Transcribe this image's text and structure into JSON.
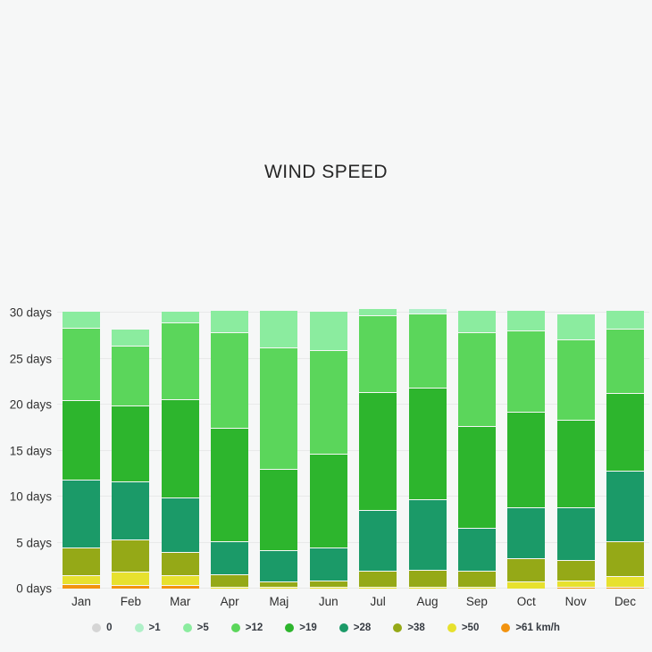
{
  "chart": {
    "title": "WIND SPEED"
  },
  "chart_data": {
    "type": "bar",
    "stacked": true,
    "title": "WIND SPEED",
    "xlabel": "",
    "ylabel": "days",
    "ylim": [
      0,
      30
    ],
    "yticks": [
      0,
      5,
      10,
      15,
      20,
      25,
      30
    ],
    "ytick_suffix": " days",
    "grid": true,
    "legend_position": "bottom",
    "categories": [
      "Jan",
      "Feb",
      "Mar",
      "Apr",
      "Maj",
      "Jun",
      "Jul",
      "Aug",
      "Sep",
      "Oct",
      "Nov",
      "Dec"
    ],
    "series": [
      {
        "name": "0",
        "legend_label": "0",
        "color": "#d5d5d5",
        "values": [
          0,
          0,
          0,
          0,
          0,
          0,
          0,
          0,
          0,
          0,
          0,
          0
        ]
      },
      {
        "name": ">1",
        "legend_label": ">1",
        "color": "#aff0c8",
        "values": [
          0,
          0,
          0,
          0,
          0,
          0,
          0,
          0.5,
          0,
          0,
          0,
          0
        ]
      },
      {
        "name": ">5",
        "legend_label": ">5",
        "color": "#8bec9f",
        "values": [
          1.8,
          1.9,
          1.3,
          2.5,
          4.1,
          4.3,
          0.7,
          0,
          2.5,
          2.2,
          2.9,
          2.1
        ]
      },
      {
        "name": ">12",
        "legend_label": ">12",
        "color": "#5bd65b",
        "values": [
          7.9,
          6.5,
          8.3,
          10.4,
          13.2,
          11.3,
          8.4,
          8.1,
          10.2,
          8.9,
          8.7,
          7.0
        ]
      },
      {
        "name": ">19",
        "legend_label": ">19",
        "color": "#2db52d",
        "values": [
          8.7,
          8.2,
          10.7,
          12.3,
          8.9,
          10.2,
          12.8,
          12.1,
          11.0,
          10.4,
          9.5,
          8.4
        ]
      },
      {
        "name": ">28",
        "legend_label": ">28",
        "color": "#1b9a68",
        "values": [
          7.3,
          6.4,
          5.9,
          3.6,
          3.4,
          3.6,
          6.6,
          7.7,
          4.7,
          5.5,
          5.7,
          7.7
        ]
      },
      {
        "name": ">38",
        "legend_label": ">38",
        "color": "#95a917",
        "values": [
          3.0,
          3.5,
          2.5,
          1.3,
          0.5,
          0.6,
          1.7,
          1.8,
          1.7,
          2.5,
          2.3,
          3.8
        ]
      },
      {
        "name": ">50",
        "legend_label": ">50",
        "color": "#e7e12e",
        "values": [
          1.0,
          1.4,
          1.1,
          0.2,
          0.1,
          0.1,
          0.2,
          0.2,
          0.1,
          0.8,
          0.6,
          1.1
        ]
      },
      {
        "name": ">61",
        "legend_label": ">61 km/h",
        "color": "#f2930f",
        "values": [
          0.5,
          0.4,
          0.4,
          0,
          0,
          0,
          0,
          0,
          0,
          0,
          0.2,
          0.2
        ]
      }
    ],
    "stacking_order_bottom_to_top": [
      ">61",
      ">50",
      ">38",
      ">28",
      ">19",
      ">12",
      ">5",
      ">1",
      "0"
    ]
  },
  "colors": {
    "background": "#f6f7f7",
    "gridline": "#e8e9e9",
    "axis_text": "#333333",
    "title_text": "#262626",
    "legend_text": "#363b42"
  }
}
